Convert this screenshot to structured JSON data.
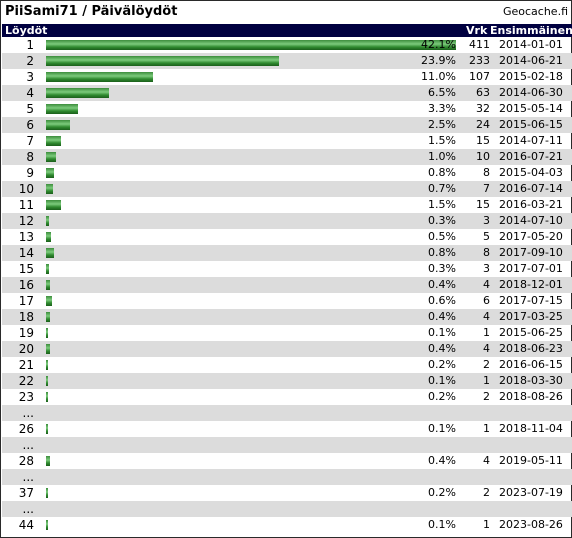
{
  "header": {
    "title": "PiiSami71 / Päivälöydöt",
    "brand": "Geocache.fi"
  },
  "columns": {
    "rank": "Löydöt",
    "count": "Vrk",
    "first": "Ensimmäinen"
  },
  "colors": {
    "header_bg": "#000040",
    "bar_green": "#3aa53a",
    "alt_row": "#dcdcdc"
  },
  "rows": [
    {
      "rank": "1",
      "pct": "42.1%",
      "count": "411",
      "date": "2014-01-01",
      "fraction": 0.421
    },
    {
      "rank": "2",
      "pct": "23.9%",
      "count": "233",
      "date": "2014-06-21",
      "fraction": 0.239
    },
    {
      "rank": "3",
      "pct": "11.0%",
      "count": "107",
      "date": "2015-02-18",
      "fraction": 0.11
    },
    {
      "rank": "4",
      "pct": "6.5%",
      "count": "63",
      "date": "2014-06-30",
      "fraction": 0.065
    },
    {
      "rank": "5",
      "pct": "3.3%",
      "count": "32",
      "date": "2015-05-14",
      "fraction": 0.033
    },
    {
      "rank": "6",
      "pct": "2.5%",
      "count": "24",
      "date": "2015-06-15",
      "fraction": 0.025
    },
    {
      "rank": "7",
      "pct": "1.5%",
      "count": "15",
      "date": "2014-07-11",
      "fraction": 0.015
    },
    {
      "rank": "8",
      "pct": "1.0%",
      "count": "10",
      "date": "2016-07-21",
      "fraction": 0.01
    },
    {
      "rank": "9",
      "pct": "0.8%",
      "count": "8",
      "date": "2015-04-03",
      "fraction": 0.008
    },
    {
      "rank": "10",
      "pct": "0.7%",
      "count": "7",
      "date": "2016-07-14",
      "fraction": 0.007
    },
    {
      "rank": "11",
      "pct": "1.5%",
      "count": "15",
      "date": "2016-03-21",
      "fraction": 0.015
    },
    {
      "rank": "12",
      "pct": "0.3%",
      "count": "3",
      "date": "2014-07-10",
      "fraction": 0.003
    },
    {
      "rank": "13",
      "pct": "0.5%",
      "count": "5",
      "date": "2017-05-20",
      "fraction": 0.005
    },
    {
      "rank": "14",
      "pct": "0.8%",
      "count": "8",
      "date": "2017-09-10",
      "fraction": 0.008
    },
    {
      "rank": "15",
      "pct": "0.3%",
      "count": "3",
      "date": "2017-07-01",
      "fraction": 0.003
    },
    {
      "rank": "16",
      "pct": "0.4%",
      "count": "4",
      "date": "2018-12-01",
      "fraction": 0.004
    },
    {
      "rank": "17",
      "pct": "0.6%",
      "count": "6",
      "date": "2017-07-15",
      "fraction": 0.006
    },
    {
      "rank": "18",
      "pct": "0.4%",
      "count": "4",
      "date": "2017-03-25",
      "fraction": 0.004
    },
    {
      "rank": "19",
      "pct": "0.1%",
      "count": "1",
      "date": "2015-06-25",
      "fraction": 0.001
    },
    {
      "rank": "20",
      "pct": "0.4%",
      "count": "4",
      "date": "2018-06-23",
      "fraction": 0.004
    },
    {
      "rank": "21",
      "pct": "0.2%",
      "count": "2",
      "date": "2016-06-15",
      "fraction": 0.002
    },
    {
      "rank": "22",
      "pct": "0.1%",
      "count": "1",
      "date": "2018-03-30",
      "fraction": 0.001
    },
    {
      "rank": "23",
      "pct": "0.2%",
      "count": "2",
      "date": "2018-08-26",
      "fraction": 0.002
    },
    {
      "rank": "...",
      "pct": "",
      "count": "",
      "date": "",
      "fraction": 0
    },
    {
      "rank": "26",
      "pct": "0.1%",
      "count": "1",
      "date": "2018-11-04",
      "fraction": 0.001
    },
    {
      "rank": "...",
      "pct": "",
      "count": "",
      "date": "",
      "fraction": 0
    },
    {
      "rank": "28",
      "pct": "0.4%",
      "count": "4",
      "date": "2019-05-11",
      "fraction": 0.004
    },
    {
      "rank": "...",
      "pct": "",
      "count": "",
      "date": "",
      "fraction": 0
    },
    {
      "rank": "37",
      "pct": "0.2%",
      "count": "2",
      "date": "2023-07-19",
      "fraction": 0.002
    },
    {
      "rank": "...",
      "pct": "",
      "count": "",
      "date": "",
      "fraction": 0
    },
    {
      "rank": "44",
      "pct": "0.1%",
      "count": "1",
      "date": "2023-08-26",
      "fraction": 0.001
    }
  ]
}
